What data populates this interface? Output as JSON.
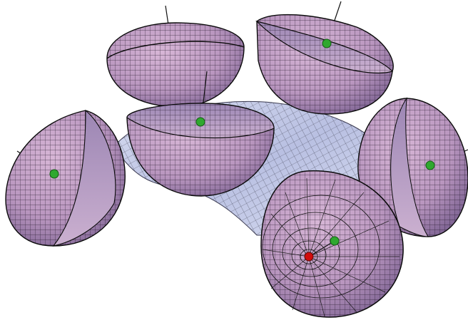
{
  "scene": {
    "background": "#ffffff",
    "surface": {
      "kind": "saddle-surface",
      "fill": "#c6cce8",
      "mesh": "#2a2a3a"
    },
    "bowl_colors": {
      "outer_fill": "#c5a0c6",
      "inner_fill": "#a58ab2",
      "mesh": "#1e1426",
      "rim": "#0a0a0a"
    },
    "marker_colors": {
      "center_point": "#2fa82f",
      "pole_point": "#d10c0c",
      "axis_line": "#111111"
    },
    "bowls": [
      {
        "id": "top-left-bowl",
        "opening": "up",
        "marker": false
      },
      {
        "id": "top-right-bowl",
        "opening": "up",
        "marker": true
      },
      {
        "id": "center-bowl",
        "opening": "up",
        "marker": true
      },
      {
        "id": "left-bowl",
        "opening": "side",
        "marker": true
      },
      {
        "id": "right-bowl",
        "opening": "side",
        "marker": true
      },
      {
        "id": "bottom-sphere",
        "opening": "back",
        "marker": true,
        "pole": true
      }
    ]
  }
}
